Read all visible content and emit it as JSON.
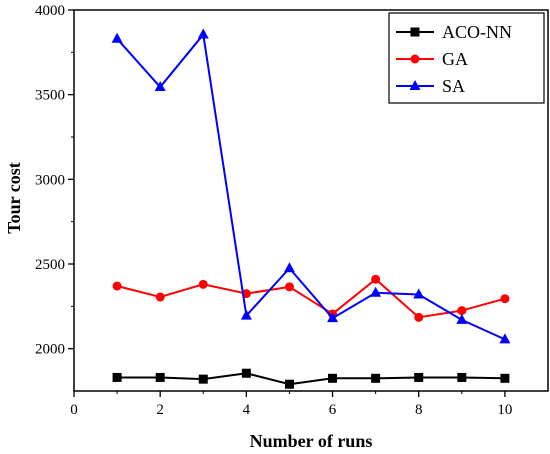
{
  "chart_data": {
    "type": "line",
    "title": "",
    "xlabel": "Number of runs",
    "ylabel": "Tour cost",
    "xlim": [
      0,
      11
    ],
    "ylim": [
      1750,
      4000
    ],
    "xticks": [
      0,
      2,
      4,
      6,
      8,
      10
    ],
    "yticks": [
      2000,
      2500,
      3000,
      3500,
      4000
    ],
    "x": [
      1,
      2,
      3,
      4,
      5,
      6,
      7,
      8,
      9,
      10
    ],
    "grid": false,
    "legend_position": "top-right",
    "series": [
      {
        "name": "ACO-NN",
        "color": "#000000",
        "marker": "square",
        "values": [
          1830,
          1830,
          1820,
          1855,
          1790,
          1825,
          1825,
          1830,
          1830,
          1825
        ]
      },
      {
        "name": "GA",
        "color": "#ff0000",
        "marker": "circle",
        "values": [
          2370,
          2305,
          2380,
          2325,
          2365,
          2205,
          2410,
          2185,
          2225,
          2295
        ]
      },
      {
        "name": "SA",
        "color": "#0000ff",
        "marker": "triangle",
        "values": [
          3830,
          3545,
          3855,
          2195,
          2475,
          2180,
          2330,
          2320,
          2170,
          2055
        ]
      }
    ]
  }
}
